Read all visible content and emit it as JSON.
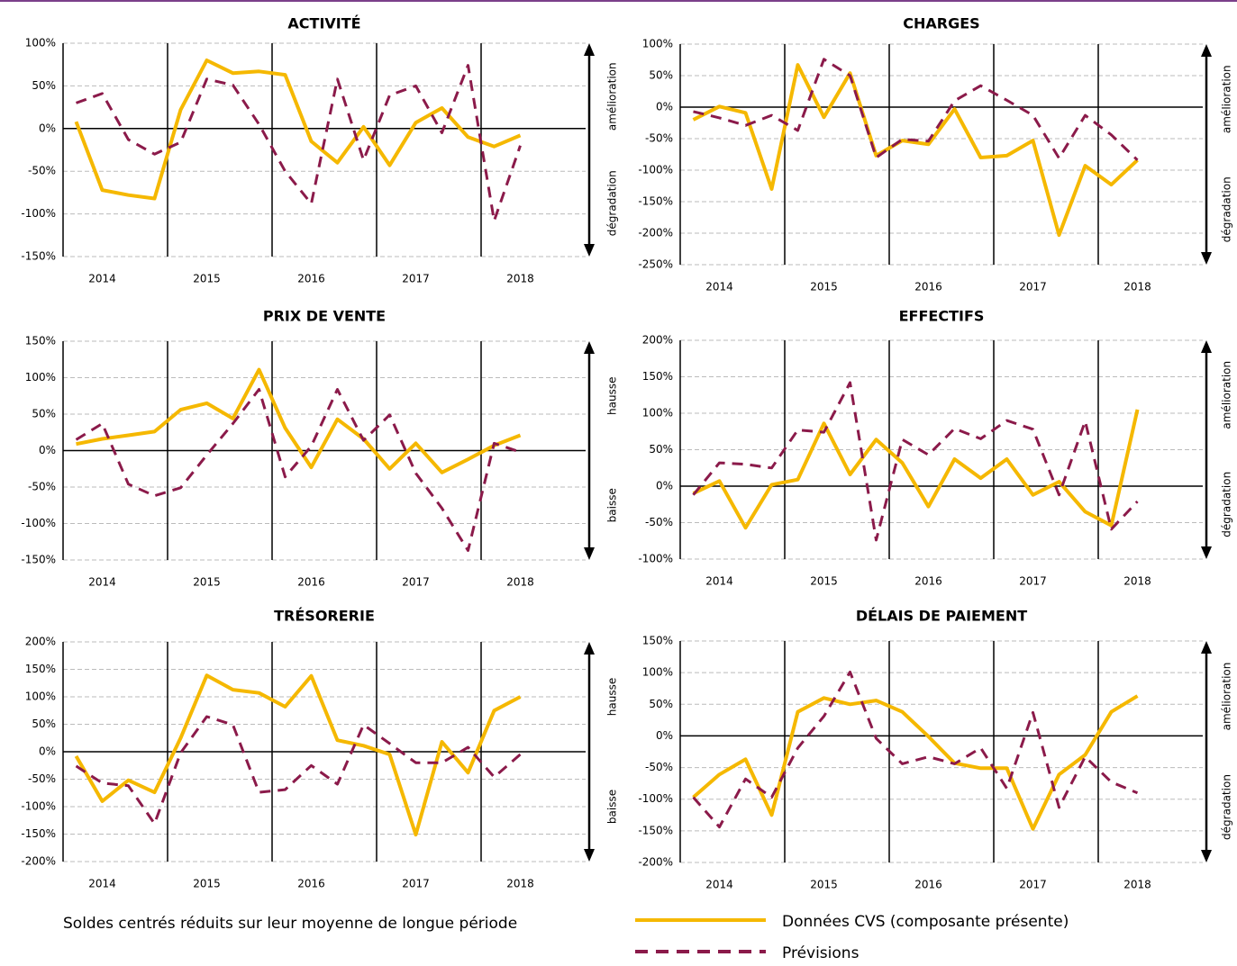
{
  "note": "Soldes centrés réduits sur leur moyenne de longue période",
  "chart_data": [
    {
      "type": "line",
      "title": "ACTIVITÉ",
      "arrow_labels": [
        "amélioration",
        "dégradation"
      ],
      "categories": [
        null,
        "2014",
        null,
        null,
        null,
        "2015",
        null,
        null,
        null,
        "2016",
        null,
        null,
        null,
        "2017",
        null,
        null,
        null,
        "2018"
      ],
      "ylim": [
        -150,
        100
      ],
      "yticks": [
        {
          "value": -150,
          "label": "-150%"
        },
        {
          "value": -100,
          "label": "-100%"
        },
        {
          "value": -50,
          "label": "-50%"
        },
        {
          "value": 0,
          "label": "0%"
        },
        {
          "value": 50,
          "label": "50%"
        },
        {
          "value": 100,
          "label": "100%"
        }
      ],
      "grid": true,
      "series": [
        {
          "name": "Données CVS (composante présente)",
          "color": "#f5b800",
          "style": "solid",
          "values": [
            8,
            -72,
            -78,
            -82,
            22,
            80,
            65,
            67,
            63,
            -15,
            -40,
            2,
            -43,
            7,
            24,
            -10,
            -21,
            -8
          ]
        },
        {
          "name": "Prévisions",
          "color": "#8b1a4a",
          "style": "dashed",
          "values": [
            30,
            41,
            -13,
            -30,
            -16,
            58,
            51,
            5,
            -50,
            -88,
            58,
            -37,
            39,
            50,
            -5,
            74,
            -108,
            -20
          ]
        }
      ]
    },
    {
      "type": "line",
      "title": "CHARGES",
      "arrow_labels": [
        "amélioration",
        "dégradation"
      ],
      "categories": [
        null,
        "2014",
        null,
        null,
        null,
        "2015",
        null,
        null,
        null,
        "2016",
        null,
        null,
        null,
        "2017",
        null,
        null,
        null,
        "2018"
      ],
      "ylim": [
        -250,
        100
      ],
      "yticks": [
        {
          "value": -250,
          "label": "-250%"
        },
        {
          "value": -200,
          "label": "-200%"
        },
        {
          "value": -150,
          "label": "-150%"
        },
        {
          "value": -100,
          "label": "-100%"
        },
        {
          "value": -50,
          "label": "-50%"
        },
        {
          "value": 0,
          "label": "0%"
        },
        {
          "value": 50,
          "label": "50%"
        },
        {
          "value": 100,
          "label": "100%"
        }
      ],
      "grid": true,
      "series": [
        {
          "name": "Données CVS (composante présente)",
          "color": "#f5b800",
          "style": "solid",
          "values": [
            -20,
            1,
            -9,
            -130,
            67,
            -16,
            54,
            -77,
            -53,
            -59,
            -3,
            -80,
            -77,
            -53,
            -203,
            -93,
            -123,
            -84
          ]
        },
        {
          "name": "Prévisions",
          "color": "#8b1a4a",
          "style": "dashed",
          "values": [
            -7,
            -17,
            -29,
            -13,
            -37,
            76,
            50,
            -80,
            -51,
            -54,
            10,
            34,
            11,
            -13,
            -81,
            -13,
            -44,
            -84
          ]
        }
      ]
    },
    {
      "type": "line",
      "title": "PRIX DE VENTE",
      "arrow_labels": [
        "hausse",
        "baisse"
      ],
      "categories": [
        null,
        "2014",
        null,
        null,
        null,
        "2015",
        null,
        null,
        null,
        "2016",
        null,
        null,
        null,
        "2017",
        null,
        null,
        null,
        "2018"
      ],
      "ylim": [
        -150,
        150
      ],
      "yticks": [
        {
          "value": -150,
          "label": "-150%"
        },
        {
          "value": -100,
          "label": "-100%"
        },
        {
          "value": -50,
          "label": "-50%"
        },
        {
          "value": 0,
          "label": "0%"
        },
        {
          "value": 50,
          "label": "50%"
        },
        {
          "value": 100,
          "label": "100%"
        },
        {
          "value": 150,
          "label": "150%"
        }
      ],
      "grid": true,
      "series": [
        {
          "name": "Données CVS (composante présente)",
          "color": "#f5b800",
          "style": "solid",
          "values": [
            9,
            16,
            21,
            26,
            56,
            65,
            44,
            111,
            31,
            -23,
            43,
            16,
            -25,
            10,
            -30,
            -12,
            7,
            21
          ]
        },
        {
          "name": "Prévisions",
          "color": "#8b1a4a",
          "style": "dashed",
          "values": [
            15,
            37,
            -46,
            -62,
            -51,
            -6,
            37,
            84,
            -36,
            6,
            84,
            14,
            49,
            -31,
            -79,
            -137,
            10,
            -2
          ]
        }
      ]
    },
    {
      "type": "line",
      "title": "EFFECTIFS",
      "arrow_labels": [
        "amélioration",
        "dégradation"
      ],
      "categories": [
        null,
        "2014",
        null,
        null,
        null,
        "2015",
        null,
        null,
        null,
        "2016",
        null,
        null,
        null,
        "2017",
        null,
        null,
        null,
        "2018"
      ],
      "ylim": [
        -100,
        200
      ],
      "yticks": [
        {
          "value": -100,
          "label": "-100%"
        },
        {
          "value": -50,
          "label": "-50%"
        },
        {
          "value": 0,
          "label": "0%"
        },
        {
          "value": 50,
          "label": "50%"
        },
        {
          "value": 100,
          "label": "100%"
        },
        {
          "value": 150,
          "label": "150%"
        },
        {
          "value": 200,
          "label": "200%"
        }
      ],
      "grid": true,
      "series": [
        {
          "name": "Données CVS (composante présente)",
          "color": "#f5b800",
          "style": "solid",
          "values": [
            -10,
            7,
            -57,
            2,
            9,
            86,
            16,
            64,
            32,
            -28,
            37,
            11,
            37,
            -12,
            6,
            -35,
            -54,
            105
          ]
        },
        {
          "name": "Prévisions",
          "color": "#8b1a4a",
          "style": "dashed",
          "values": [
            -12,
            32,
            30,
            25,
            77,
            74,
            142,
            -74,
            64,
            43,
            79,
            65,
            90,
            78,
            -12,
            89,
            -59,
            -21
          ]
        }
      ]
    },
    {
      "type": "line",
      "title": "TRÉSORERIE",
      "arrow_labels": [
        "hausse",
        "baisse"
      ],
      "categories": [
        null,
        "2014",
        null,
        null,
        null,
        "2015",
        null,
        null,
        null,
        "2016",
        null,
        null,
        null,
        "2017",
        null,
        null,
        null,
        "2018"
      ],
      "ylim": [
        -200,
        200
      ],
      "yticks": [
        {
          "value": -200,
          "label": "-200%"
        },
        {
          "value": -150,
          "label": "-150%"
        },
        {
          "value": -100,
          "label": "-100%"
        },
        {
          "value": -50,
          "label": "-50%"
        },
        {
          "value": 0,
          "label": "0%"
        },
        {
          "value": 50,
          "label": "50%"
        },
        {
          "value": 100,
          "label": "100%"
        },
        {
          "value": 150,
          "label": "150%"
        },
        {
          "value": 200,
          "label": "200%"
        }
      ],
      "grid": true,
      "series": [
        {
          "name": "Données CVS (composante présente)",
          "color": "#f5b800",
          "style": "solid",
          "values": [
            -8,
            -90,
            -52,
            -74,
            25,
            139,
            113,
            107,
            82,
            138,
            21,
            11,
            -5,
            -151,
            18,
            -38,
            75,
            100
          ]
        },
        {
          "name": "Prévisions",
          "color": "#8b1a4a",
          "style": "dashed",
          "values": [
            -26,
            -57,
            -62,
            -131,
            -2,
            64,
            49,
            -74,
            -69,
            -25,
            -59,
            49,
            15,
            -20,
            -20,
            8,
            -46,
            -5
          ]
        }
      ]
    },
    {
      "type": "line",
      "title": "DÉLAIS DE PAIEMENT",
      "arrow_labels": [
        "amélioration",
        "dégradation"
      ],
      "categories": [
        null,
        "2014",
        null,
        null,
        null,
        "2015",
        null,
        null,
        null,
        "2016",
        null,
        null,
        null,
        "2017",
        null,
        null,
        null,
        "2018"
      ],
      "ylim": [
        -200,
        150
      ],
      "yticks": [
        {
          "value": -200,
          "label": "-200%"
        },
        {
          "value": -150,
          "label": "-150%"
        },
        {
          "value": -100,
          "label": "-100%"
        },
        {
          "value": -50,
          "label": "-50%"
        },
        {
          "value": 0,
          "label": "0%"
        },
        {
          "value": 50,
          "label": "50%"
        },
        {
          "value": 100,
          "label": "100%"
        },
        {
          "value": 150,
          "label": "150%"
        }
      ],
      "grid": true,
      "series": [
        {
          "name": "Données CVS (composante présente)",
          "color": "#f5b800",
          "style": "solid",
          "values": [
            -97,
            -61,
            -37,
            -125,
            38,
            60,
            50,
            56,
            38,
            -1,
            -43,
            -51,
            -51,
            -147,
            -61,
            -30,
            38,
            63
          ]
        },
        {
          "name": "Prévisions",
          "color": "#8b1a4a",
          "style": "dashed",
          "values": [
            -97,
            -144,
            -68,
            -97,
            -19,
            31,
            101,
            -4,
            -44,
            -33,
            -44,
            -19,
            -83,
            37,
            -113,
            -33,
            -73,
            -90
          ]
        }
      ]
    }
  ]
}
